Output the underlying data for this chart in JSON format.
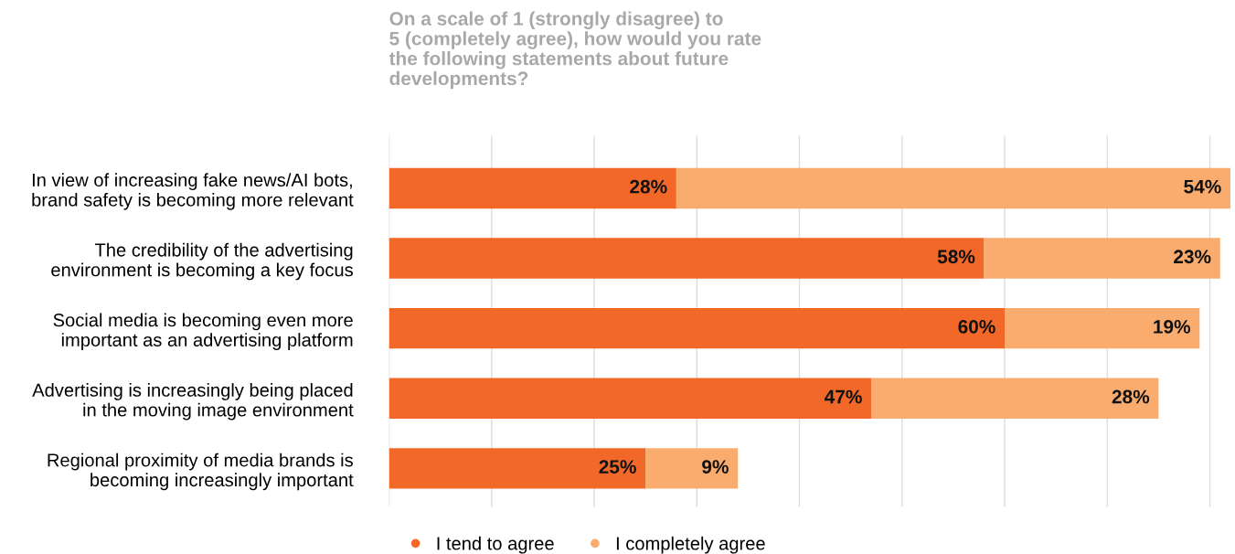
{
  "chart_data": {
    "type": "bar",
    "orientation": "horizontal",
    "stacked": true,
    "title": "On a scale of 1 (strongly disagree) to\n5 (completely agree), how would you rate\nthe following statements about future\ndevelopments?",
    "categories": [
      "In view of increasing fake news/AI bots,\nbrand safety is becoming more relevant",
      "The credibility of the advertising\nenvironment is becoming a key focus",
      "Social media is becoming even more\nimportant as an advertising platform",
      "Advertising is increasingly being placed\nin the moving image environment",
      "Regional proximity of media brands is\nbecoming increasingly important"
    ],
    "series": [
      {
        "name": "I tend to agree",
        "color": "#f26829",
        "values": [
          28,
          58,
          60,
          47,
          25
        ],
        "value_labels": [
          "28%",
          "58%",
          "60%",
          "47%",
          "25%"
        ]
      },
      {
        "name": "I completely agree",
        "color": "#f9ac6e",
        "values": [
          54,
          23,
          19,
          28,
          9
        ],
        "value_labels": [
          "54%",
          "23%",
          "19%",
          "28%",
          "9%"
        ]
      }
    ],
    "grid": "x",
    "legend": "bottom",
    "marker": "circle",
    "tick_labels": "y"
  }
}
